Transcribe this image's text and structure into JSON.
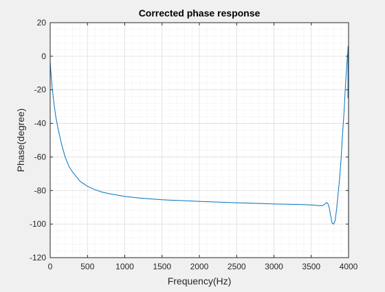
{
  "chart_data": {
    "type": "line",
    "title": "Corrected phase response",
    "xlabel": "Frequency(Hz)",
    "ylabel": "Phase(degree)",
    "xlim": [
      0,
      4000
    ],
    "ylim": [
      -120,
      20
    ],
    "xticks": [
      0,
      500,
      1000,
      1500,
      2000,
      2500,
      3000,
      3500,
      4000
    ],
    "xtick_labels": [
      "0",
      "500",
      "1000",
      "1500",
      "2000",
      "2500",
      "3000",
      "3500",
      "4000"
    ],
    "yticks": [
      -120,
      -100,
      -80,
      -60,
      -40,
      -20,
      0,
      20
    ],
    "ytick_labels": [
      "-120",
      "-100",
      "-80",
      "-60",
      "-40",
      "-20",
      "0",
      "20"
    ],
    "grid": true,
    "minor_grid": true,
    "colors": {
      "line": "#0072bd",
      "axes_bg": "#ffffff",
      "figure_bg": "#f0f0f0",
      "axis": "#262626"
    },
    "series": [
      {
        "x": [
          0,
          10,
          25,
          50,
          75,
          100,
          150,
          200,
          250,
          300,
          400,
          500,
          600,
          700,
          800,
          1000,
          1200,
          1500,
          2000,
          2500,
          3000,
          3300,
          3500,
          3600,
          3650,
          3680,
          3700,
          3720,
          3740,
          3760,
          3780,
          3800,
          3820,
          3840,
          3860,
          3880,
          3900,
          3920,
          3940,
          3960,
          3975,
          3985,
          3992,
          3997,
          4000
        ],
        "y": [
          -3,
          -10,
          -18,
          -28,
          -36,
          -42,
          -52,
          -60,
          -65.5,
          -69,
          -74.5,
          -77.5,
          -79.5,
          -81,
          -82,
          -83.5,
          -84.5,
          -85.5,
          -86.5,
          -87.3,
          -88,
          -88.3,
          -88.6,
          -89,
          -89,
          -88.2,
          -87.3,
          -87.5,
          -90,
          -95,
          -99.5,
          -100,
          -98,
          -91,
          -82,
          -73,
          -61,
          -46,
          -33,
          -16,
          -6,
          0,
          4,
          5,
          5
        ]
      }
    ]
  }
}
